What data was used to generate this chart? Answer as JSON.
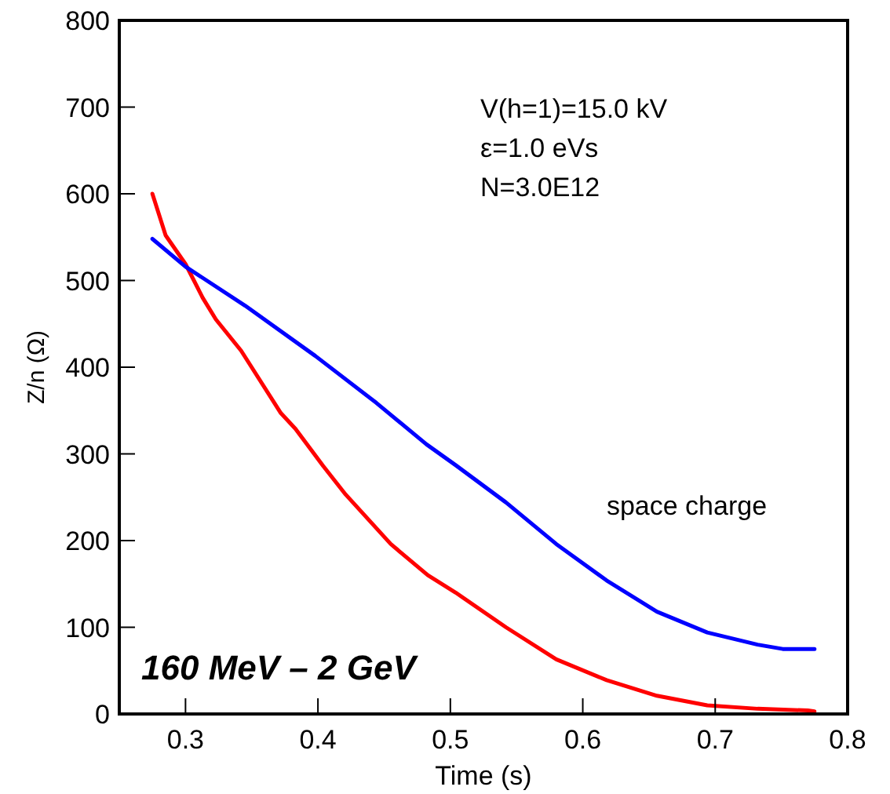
{
  "chart_data": {
    "type": "line",
    "xlabel": "Time (s)",
    "ylabel": "Z/n (Ω)",
    "xlim": [
      0.25,
      0.8
    ],
    "xticks": [
      0.3,
      0.4,
      0.5,
      0.6,
      0.7,
      0.8
    ],
    "ylim": [
      0,
      800
    ],
    "yticks": [
      0,
      100,
      200,
      300,
      400,
      500,
      600,
      700,
      800
    ],
    "grid": false,
    "marker": "none",
    "line_style": "solid",
    "annotations": [
      "V(h=1)=15.0 kV",
      "ε=1.0 eVs",
      "N=3.0E12",
      "160 MeV – 2 GeV"
    ],
    "series": [
      {
        "color": "#ff0000",
        "x": [
          0.275,
          0.285,
          0.3,
          0.313,
          0.323,
          0.342,
          0.372,
          0.383,
          0.404,
          0.421,
          0.455,
          0.483,
          0.504,
          0.542,
          0.58,
          0.618,
          0.656,
          0.694,
          0.732,
          0.77,
          0.775
        ],
        "values": [
          600,
          552,
          519,
          480,
          455,
          419,
          347,
          329,
          286,
          253,
          196,
          160,
          140,
          100,
          63,
          39,
          21,
          10,
          6,
          4,
          3
        ]
      },
      {
        "name": "space charge",
        "color": "#0000ff",
        "x": [
          0.275,
          0.3,
          0.345,
          0.398,
          0.444,
          0.482,
          0.504,
          0.542,
          0.58,
          0.618,
          0.656,
          0.694,
          0.732,
          0.751,
          0.77,
          0.775
        ],
        "values": [
          548,
          516,
          471,
          413,
          359,
          311,
          287,
          244,
          196,
          154,
          118,
          94,
          80,
          75,
          75,
          75
        ]
      }
    ]
  }
}
